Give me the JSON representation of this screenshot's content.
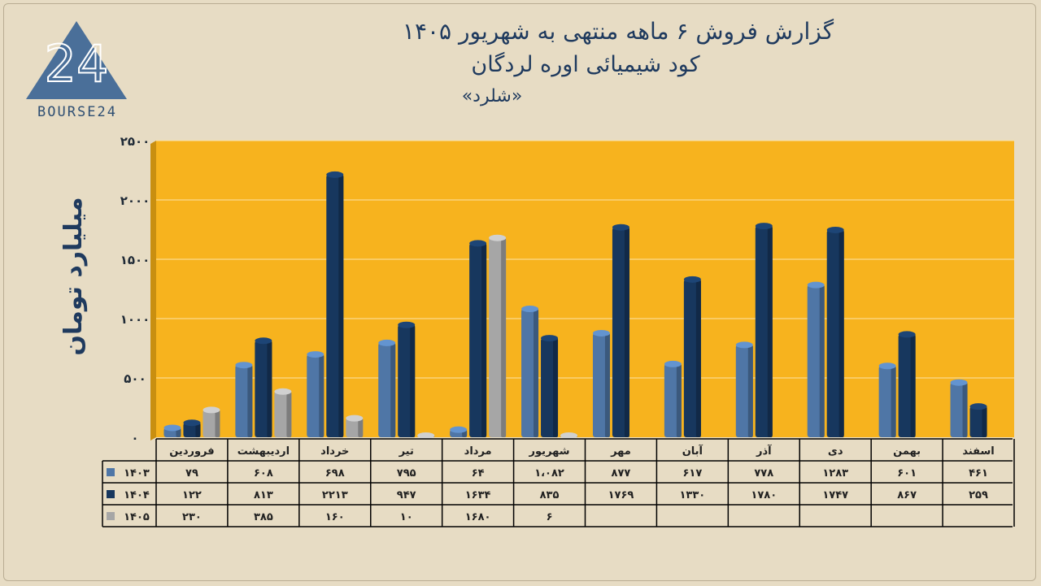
{
  "header": {
    "title_line1": "گزارش  فروش ۶ ماهه منتهی به شهریور ۱۴۰۵",
    "title_line2": "کود شیمیائی اوره لردگان",
    "title_line3": "«شلرد»",
    "logo_text": "BOURSE24"
  },
  "colors": {
    "plot_background": "#f7b31e",
    "series_1403": "#4f76a6",
    "series_1404": "#17375e",
    "series_1405": "#a6a6a6",
    "text": "#1f3a5e"
  },
  "chart_data": {
    "type": "bar",
    "ylabel": "میلیارد تومان",
    "ylim": [
      0,
      2500
    ],
    "yticks": [
      "۰",
      "۵۰۰",
      "۱۰۰۰",
      "۱۵۰۰",
      "۲۰۰۰",
      "۲۵۰۰"
    ],
    "ytick_values": [
      0,
      500,
      1000,
      1500,
      2000,
      2500
    ],
    "grid": true,
    "legend": "data-table-below",
    "categories": [
      "فروردین",
      "اردیبهشت",
      "خرداد",
      "تیر",
      "مرداد",
      "شهریور",
      "مهر",
      "آبان",
      "آذر",
      "دی",
      "بهمن",
      "اسفند"
    ],
    "series": [
      {
        "name": "۱۴۰۳",
        "values": [
          79,
          608,
          698,
          795,
          64,
          1082,
          877,
          617,
          778,
          1283,
          601,
          461
        ],
        "labels": [
          "۷۹",
          "۶۰۸",
          "۶۹۸",
          "۷۹۵",
          "۶۴",
          "۱،۰۸۲",
          "۸۷۷",
          "۶۱۷",
          "۷۷۸",
          "۱۲۸۳",
          "۶۰۱",
          "۴۶۱"
        ]
      },
      {
        "name": "۱۴۰۴",
        "values": [
          122,
          813,
          2213,
          947,
          1634,
          835,
          1769,
          1330,
          1780,
          1747,
          867,
          259
        ],
        "labels": [
          "۱۲۲",
          "۸۱۳",
          "۲۲۱۳",
          "۹۴۷",
          "۱۶۳۴",
          "۸۳۵",
          "۱۷۶۹",
          "۱۳۳۰",
          "۱۷۸۰",
          "۱۷۴۷",
          "۸۶۷",
          "۲۵۹"
        ]
      },
      {
        "name": "۱۴۰۵",
        "values": [
          230,
          385,
          160,
          10,
          1680,
          6,
          null,
          null,
          null,
          null,
          null,
          null
        ],
        "labels": [
          "۲۳۰",
          "۳۸۵",
          "۱۶۰",
          "۱۰",
          "۱۶۸۰",
          "۶",
          "",
          "",
          "",
          "",
          "",
          ""
        ]
      }
    ]
  }
}
